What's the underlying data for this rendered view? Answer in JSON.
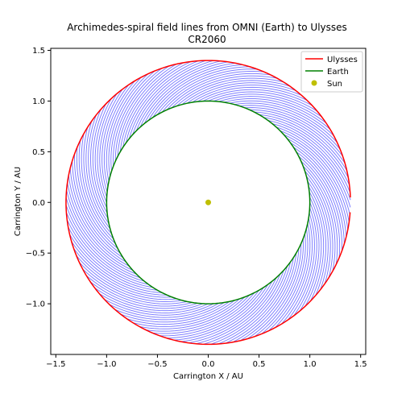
{
  "chart_data": {
    "type": "line",
    "title": "Archimedes-spiral field lines from OMNI (Earth) to Ulysses",
    "subtitle": "CR2060",
    "xlabel": "Carrington X / AU",
    "ylabel": "Carrington Y / AU",
    "xlim": [
      -1.55,
      1.55
    ],
    "ylim": [
      -1.5,
      1.52
    ],
    "xticks": [
      -1.5,
      -1.0,
      -0.5,
      0.0,
      0.5,
      1.0,
      1.5
    ],
    "yticks": [
      -1.0,
      -0.5,
      0.0,
      0.5,
      1.0,
      1.5
    ],
    "xtick_labels": [
      "−1.5",
      "−1.0",
      "−0.5",
      "0.0",
      "0.5",
      "1.0",
      "1.5"
    ],
    "ytick_labels": [
      "−1.0",
      "−0.5",
      "0.0",
      "0.5",
      "1.0",
      "1.5"
    ],
    "grid": false,
    "legend_position": "top-right",
    "colors": {
      "ulysses": "#ff0000",
      "earth": "#008000",
      "sun": "#bfbf00",
      "field_lines": "#0000ff"
    },
    "series": [
      {
        "name": "Ulysses",
        "kind": "orbit",
        "radius_au": [
          1.4,
          1.4
        ],
        "angle_deg": [
          -358.0,
          -4.0
        ]
      },
      {
        "name": "Earth",
        "kind": "orbit",
        "radius_au": [
          1.0,
          1.0
        ],
        "angle_deg": [
          0.0,
          360.0
        ]
      },
      {
        "name": "Sun",
        "kind": "point",
        "x": 0.0,
        "y": 0.0
      }
    ],
    "field_lines": {
      "count": 120,
      "start_radius_au": 1.0,
      "end_radius_au": 1.4,
      "rotation_deg": 50
    }
  }
}
